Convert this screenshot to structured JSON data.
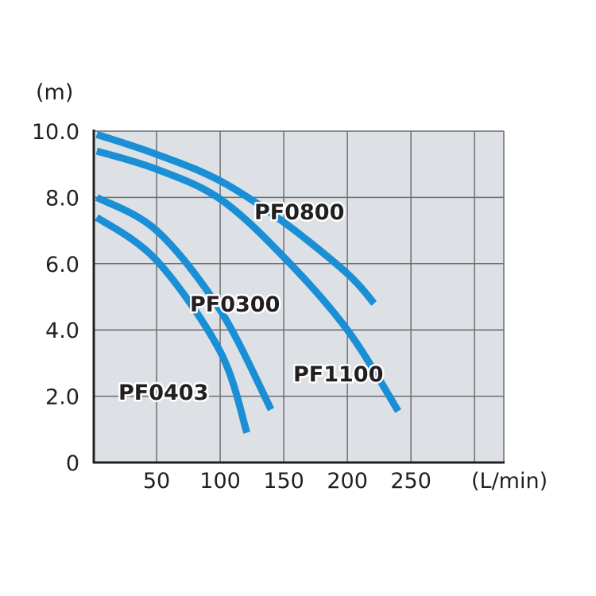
{
  "chart_data": {
    "type": "line",
    "title": "",
    "xlabel": "(L/min)",
    "ylabel": "(m)",
    "xlim": [
      0,
      323
    ],
    "ylim": [
      0,
      10
    ],
    "x_ticks": [
      50,
      100,
      150,
      200,
      250
    ],
    "x_tick_labels": [
      "50",
      "100",
      "150",
      "200",
      "250"
    ],
    "x_gridlines": [
      50,
      100,
      150,
      200,
      250,
      300
    ],
    "y_ticks": [
      0,
      2,
      4,
      6,
      8,
      10
    ],
    "y_tick_labels": [
      "0",
      "2.0",
      "4.0",
      "6.0",
      "8.0",
      "10.0"
    ],
    "grid": true,
    "legend": "none (inline labels)",
    "colors": {
      "line": "#1a8fd6",
      "background": "#dde1e5",
      "grid": "#6d6e71",
      "axis": "#231f20"
    },
    "series": [
      {
        "name": "PF0800",
        "x": [
          3,
          50,
          100,
          150,
          200,
          221
        ],
        "y": [
          9.9,
          9.3,
          8.5,
          7.25,
          5.7,
          4.8
        ]
      },
      {
        "name": "PF1100",
        "x": [
          3,
          50,
          100,
          150,
          200,
          240
        ],
        "y": [
          9.4,
          8.85,
          7.95,
          6.2,
          4.0,
          1.55
        ]
      },
      {
        "name": "PF0300",
        "x": [
          3,
          50,
          100,
          140
        ],
        "y": [
          8.0,
          7.0,
          4.6,
          1.6
        ]
      },
      {
        "name": "PF0403",
        "x": [
          3,
          50,
          100,
          121
        ],
        "y": [
          7.4,
          6.1,
          3.35,
          0.9
        ]
      }
    ]
  }
}
